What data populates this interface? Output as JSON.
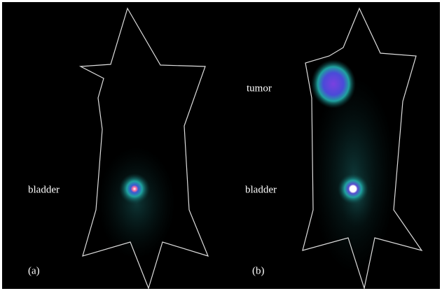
{
  "panels": [
    {
      "label": "(a)",
      "annotations": [
        "bladder"
      ]
    },
    {
      "label": "(b)",
      "annotations": [
        "tumor",
        "bladder"
      ]
    }
  ]
}
